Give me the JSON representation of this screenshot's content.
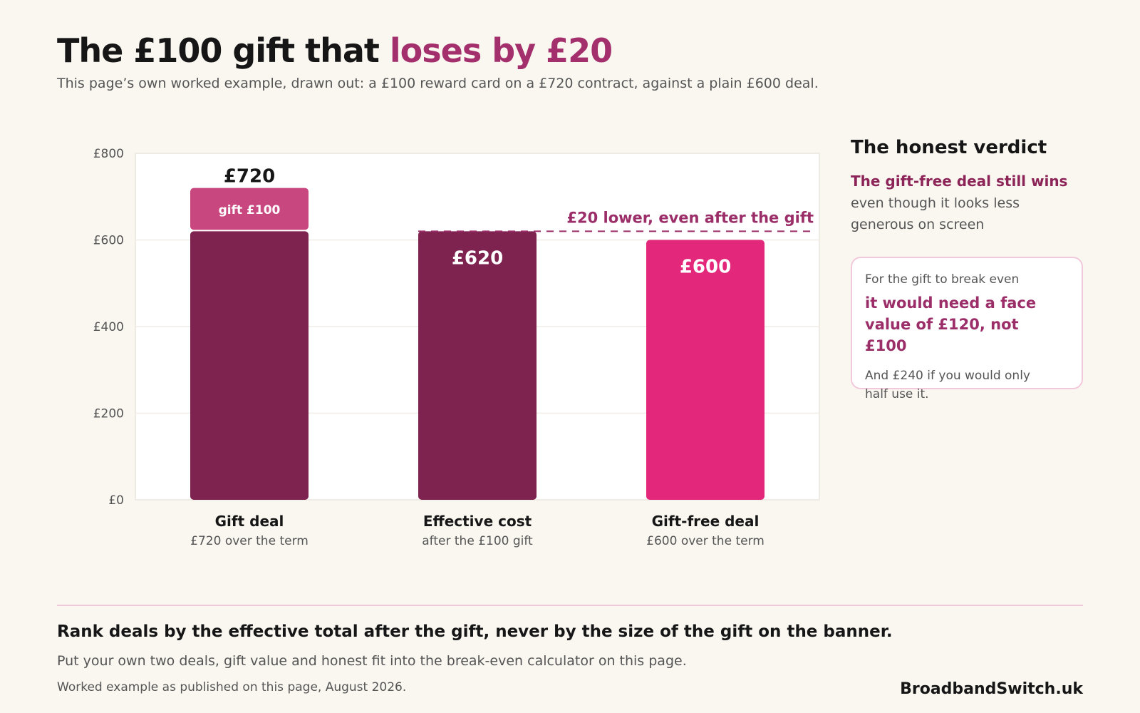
{
  "header": {
    "title_main": "The £100 gift that ",
    "title_accent": "loses by £20",
    "subtitle": "This page’s own worked example, drawn out: a £100 reward card on a £720 contract, against a plain £600 deal."
  },
  "chart_data": {
    "type": "bar",
    "stacked": true,
    "title": "",
    "xlabel": "",
    "ylabel": "",
    "ylim": [
      0,
      800
    ],
    "yticks": [
      0,
      200,
      400,
      600,
      800
    ],
    "ytick_labels": [
      "£0",
      "£200",
      "£400",
      "£600",
      "£800"
    ],
    "grid": true,
    "categories": [
      {
        "name": "Gift deal",
        "sub": "£720 over the term"
      },
      {
        "name": "Effective cost",
        "sub": "after the £100 gift"
      },
      {
        "name": "Gift-free deal",
        "sub": "£600 over the term"
      }
    ],
    "bars": [
      {
        "base": 620,
        "gift": 100,
        "total": 720,
        "label_top": "£720",
        "gift_label": "gift £100",
        "label_inside": ""
      },
      {
        "base": 620,
        "gift": 0,
        "total": 620,
        "label_top": "",
        "gift_label": "",
        "label_inside": "£620"
      },
      {
        "base": 600,
        "gift": 0,
        "total": 600,
        "label_top": "",
        "gift_label": "",
        "label_inside": "£600"
      }
    ],
    "colors": {
      "base": "#7e2250",
      "gift": "#c8477f",
      "gift_free": "#e3277a",
      "annotation": "#9b2d68"
    },
    "annotation": {
      "text": "£20 lower, even after the gift",
      "at_value": 620
    }
  },
  "verdict": {
    "title": "The honest verdict",
    "strong": "The gift-free deal still wins",
    "body": "even though it looks less generous on screen"
  },
  "card": {
    "intro": "For the gift to break even",
    "strong": "it would need a face value of £120, not £100",
    "note": "And £240 if you would only half use it."
  },
  "footer": {
    "takeaway": "Rank deals by the effective total after the gift, never by the size of the gift on the banner.",
    "sub": "Put your own two deals, gift value and honest fit into the break-even calculator on this page.",
    "source": "Worked example as published on this page, August 2026.",
    "brand": "BroadbandSwitch.uk"
  }
}
